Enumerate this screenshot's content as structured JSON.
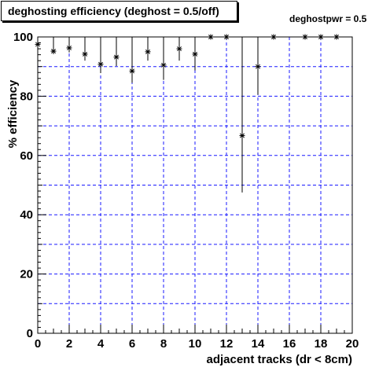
{
  "title": "deghosting efficiency (deghost = 0.5/off)",
  "annotation": "deghostpwr = 0.5",
  "chart_data": {
    "type": "scatter",
    "title": "deghosting efficiency (deghost = 0.5/off)",
    "xlabel": "adjacent tracks (dr < 8cm)",
    "ylabel": "% efficiency",
    "xlim": [
      0,
      20
    ],
    "ylim": [
      0,
      100
    ],
    "x_ticks": [
      "0",
      "2",
      "4",
      "6",
      "8",
      "10",
      "12",
      "14",
      "16",
      "18",
      "20"
    ],
    "y_ticks": [
      "0",
      "20",
      "40",
      "60",
      "80",
      "100"
    ],
    "grid": true,
    "marker": "asterisk",
    "series": [
      {
        "points": [
          {
            "x": 0,
            "y": 97.5,
            "err": 0.8
          },
          {
            "x": 1,
            "y": 95.2,
            "err": 1.0
          },
          {
            "x": 2,
            "y": 96.3,
            "err": 1.5
          },
          {
            "x": 3,
            "y": 94.2,
            "err": 2.2
          },
          {
            "x": 4,
            "y": 90.8,
            "err": 3.0
          },
          {
            "x": 5,
            "y": 93.2,
            "err": 3.0
          },
          {
            "x": 6,
            "y": 88.5,
            "err": 4.0
          },
          {
            "x": 7,
            "y": 95.0,
            "err": 3.0
          },
          {
            "x": 8,
            "y": 90.5,
            "err": 5.0
          },
          {
            "x": 9,
            "y": 96.0,
            "err": 4.0
          },
          {
            "x": 10,
            "y": 94.2,
            "err": 5.5
          },
          {
            "x": 11,
            "y": 100,
            "err": 0
          },
          {
            "x": 12,
            "y": 100,
            "err": 0
          },
          {
            "x": 13,
            "y": 66.7,
            "err": 19.2
          },
          {
            "x": 14,
            "y": 90.0,
            "err": 9.5
          },
          {
            "x": 15,
            "y": 100,
            "err": 0
          },
          {
            "x": 17,
            "y": 100,
            "err": 0
          },
          {
            "x": 18,
            "y": 100,
            "err": 0
          },
          {
            "x": 19,
            "y": 100,
            "err": 0
          }
        ]
      }
    ]
  }
}
